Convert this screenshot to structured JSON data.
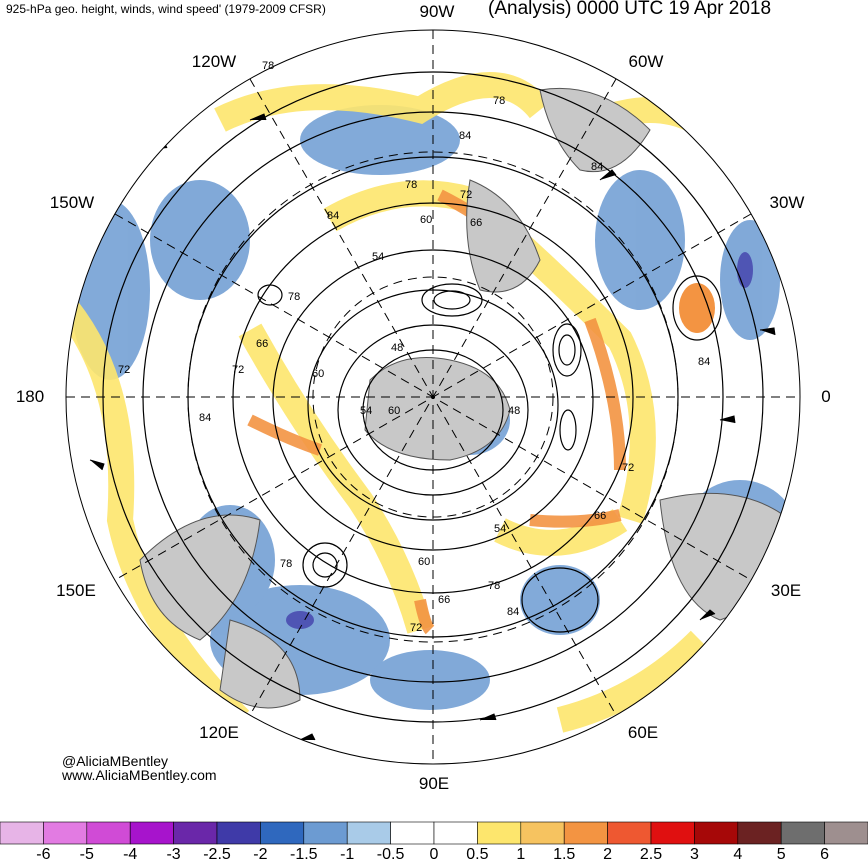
{
  "header": {
    "left_title": "925-hPa geo. height, winds, wind speed' (1979-2009 CFSR)",
    "right_title": "(Analysis) 0000 UTC 19 Apr 2018"
  },
  "map": {
    "projection": "north-polar-stereographic",
    "longitude_labels": {
      "top": "90W",
      "upper_right": "60W",
      "right_upper": "30W",
      "right": "0",
      "right_lower": "30E",
      "lower_right": "60E",
      "bottom": "90E",
      "lower_left": "120E",
      "left_lower": "150E",
      "left": "180",
      "left_upper": "150W",
      "upper_left": "120W"
    },
    "height_labels": [
      "78",
      "78",
      "84",
      "84",
      "84",
      "78",
      "72",
      "60",
      "66",
      "54",
      "48",
      "60",
      "66",
      "72",
      "54",
      "60",
      "48",
      "72",
      "66",
      "54",
      "60",
      "66",
      "78",
      "84",
      "72",
      "78",
      "84",
      "84",
      "72",
      "78"
    ],
    "colors": {
      "land": "#c8c8c8",
      "ocean": "#ffffff",
      "contour": "#000000"
    }
  },
  "credit": {
    "handle": "@AliciaMBentley",
    "website": "www.AliciaMBentley.com"
  },
  "colorbar": {
    "ticks": [
      "-6",
      "-5",
      "-4",
      "-3",
      "-2.5",
      "-2",
      "-1.5",
      "-1",
      "-0.5",
      "0",
      "0.5",
      "1",
      "1.5",
      "2",
      "2.5",
      "3",
      "4",
      "5",
      "6"
    ],
    "colors": [
      "#e7b4e7",
      "#e27be2",
      "#d04bd6",
      "#a714cc",
      "#6a27a9",
      "#3f3aa8",
      "#2f68be",
      "#6c9bd2",
      "#a9cbe8",
      "#ffffff",
      "#ffffff",
      "#fde66d",
      "#f6c360",
      "#f39442",
      "#ee5831",
      "#e01010",
      "#a60808",
      "#6b2222",
      "#6e6e6e",
      "#9e8f8f"
    ]
  }
}
